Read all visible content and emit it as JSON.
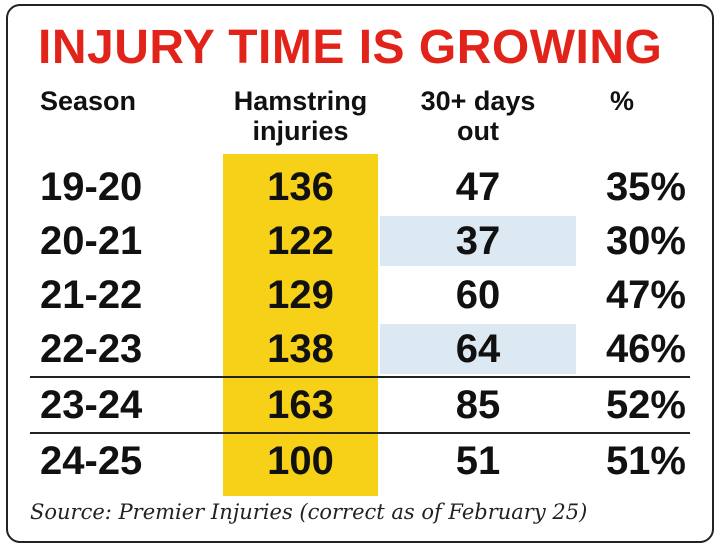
{
  "chart_data": {
    "type": "table",
    "title": "INJURY TIME IS GROWING",
    "columns": [
      "Season",
      "Hamstring injuries",
      "30+ days out",
      "%"
    ],
    "rows": [
      {
        "season": "19-20",
        "hamstring": "136",
        "days_out": "47",
        "pct": "35%"
      },
      {
        "season": "20-21",
        "hamstring": "122",
        "days_out": "37",
        "pct": "30%"
      },
      {
        "season": "21-22",
        "hamstring": "129",
        "days_out": "60",
        "pct": "47%"
      },
      {
        "season": "22-23",
        "hamstring": "138",
        "days_out": "64",
        "pct": "46%"
      },
      {
        "season": "23-24",
        "hamstring": "163",
        "days_out": "85",
        "pct": "52%"
      },
      {
        "season": "24-25",
        "hamstring": "100",
        "days_out": "51",
        "pct": "51%"
      }
    ],
    "source": "Source: Premier Injuries (correct as of February 25)",
    "colors": {
      "title": "#e2231a",
      "highlight": "#f7d117",
      "shade": "#dce8f2"
    }
  }
}
